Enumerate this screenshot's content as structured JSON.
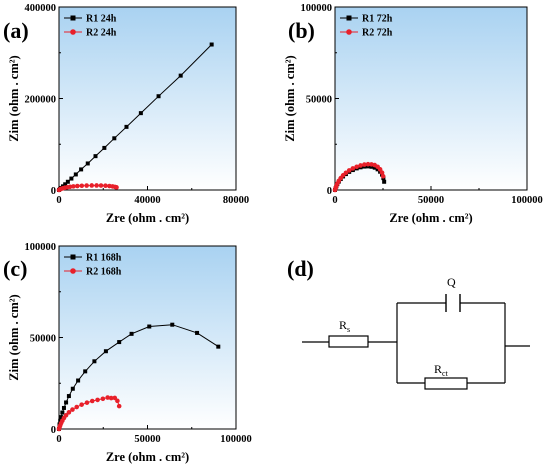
{
  "chart_data": [
    {
      "type": "scatter",
      "panel_label": "(a)",
      "xlabel": "Zre (ohm . cm²)",
      "ylabel": "Zim (ohm . cm²)",
      "xlim": [
        0,
        80000
      ],
      "ylim": [
        0,
        400000
      ],
      "xticks": [
        0,
        40000,
        80000
      ],
      "yticks": [
        0,
        200000,
        400000
      ],
      "legend": "top-left",
      "grid": false,
      "series": [
        {
          "name": "R1 24h",
          "color": "#000000",
          "marker": "square",
          "x": [
            0,
            400,
            1000,
            1800,
            2800,
            4000,
            5600,
            7600,
            10000,
            13000,
            16500,
            20500,
            25000,
            30500,
            37000,
            45000,
            55000,
            69000
          ],
          "y": [
            0,
            2000,
            4500,
            8000,
            12500,
            18000,
            25000,
            34000,
            45000,
            58000,
            74000,
            92000,
            113000,
            138000,
            168000,
            205000,
            250000,
            318000
          ]
        },
        {
          "name": "R2 24h",
          "color": "#e8202a",
          "marker": "circle",
          "x": [
            0,
            300,
            700,
            1200,
            1900,
            2700,
            3700,
            5000,
            6500,
            8300,
            10300,
            12500,
            14800,
            17000,
            19000,
            21000,
            22800,
            24200,
            25300,
            26000
          ],
          "y": [
            0,
            1000,
            2000,
            3000,
            4000,
            5000,
            6000,
            7000,
            7900,
            8700,
            9300,
            9700,
            9900,
            9950,
            9800,
            9400,
            8700,
            7800,
            6800,
            5800
          ]
        }
      ]
    },
    {
      "type": "scatter",
      "panel_label": "(b)",
      "xlabel": "Zre (ohm . cm²)",
      "ylabel": "Zim (ohm . cm²)",
      "xlim": [
        0,
        100000
      ],
      "ylim": [
        0,
        100000
      ],
      "xticks": [
        0,
        50000,
        100000
      ],
      "yticks": [
        0,
        50000,
        100000
      ],
      "legend": "top-left",
      "grid": false,
      "series": [
        {
          "name": "R1 72h",
          "color": "#000000",
          "marker": "square",
          "x": [
            0,
            300,
            700,
            1200,
            2000,
            3000,
            4200,
            5700,
            7400,
            9300,
            11300,
            13300,
            15300,
            17200,
            19000,
            20700,
            22200,
            23500,
            24500,
            25200,
            25600
          ],
          "y": [
            0,
            900,
            2000,
            3200,
            4600,
            6000,
            7400,
            8700,
            9900,
            10900,
            11800,
            12400,
            12800,
            12900,
            12700,
            12200,
            11300,
            10000,
            8400,
            6500,
            4500
          ]
        },
        {
          "name": "R2 72h",
          "color": "#e8202a",
          "marker": "circle",
          "x": [
            0,
            300,
            700,
            1200,
            2000,
            3000,
            4200,
            5700,
            7400,
            9300,
            11300,
            13300,
            15300,
            17200,
            19000,
            20700,
            22200,
            23500,
            24500,
            25100
          ],
          "y": [
            0,
            1000,
            2200,
            3500,
            5000,
            6500,
            8000,
            9400,
            10700,
            11800,
            12700,
            13400,
            13900,
            14100,
            14000,
            13600,
            12700,
            11300,
            9500,
            7500
          ]
        }
      ]
    },
    {
      "type": "scatter",
      "panel_label": "(c)",
      "xlabel": "Zre (ohm . cm²)",
      "ylabel": "Zim (ohm . cm²)",
      "xlim": [
        0,
        100000
      ],
      "ylim": [
        0,
        100000
      ],
      "xticks": [
        0,
        50000,
        100000
      ],
      "yticks": [
        0,
        50000,
        100000
      ],
      "legend": "top-left",
      "grid": false,
      "series": [
        {
          "name": "R1 168h",
          "color": "#000000",
          "marker": "square",
          "x": [
            0,
            300,
            700,
            1200,
            1900,
            2800,
            4000,
            5600,
            7800,
            10800,
            14800,
            20000,
            26500,
            34000,
            41000,
            51000,
            64000,
            78000,
            90000
          ],
          "y": [
            0,
            2500,
            4500,
            6500,
            9000,
            11500,
            14500,
            18000,
            22000,
            26500,
            31500,
            37000,
            42500,
            47500,
            52000,
            56000,
            57000,
            52500,
            45000
          ]
        },
        {
          "name": "R2 168h",
          "color": "#e8202a",
          "marker": "circle",
          "x": [
            0,
            300,
            700,
            1200,
            1900,
            2800,
            4000,
            5600,
            7600,
            10000,
            12800,
            15800,
            18800,
            21800,
            24800,
            27500,
            29500,
            31500,
            33000,
            34000
          ],
          "y": [
            0,
            1000,
            2000,
            3200,
            4500,
            6000,
            7500,
            9100,
            10600,
            12000,
            13300,
            14400,
            15300,
            15900,
            16500,
            17200,
            16900,
            17000,
            15400,
            12500
          ]
        }
      ]
    }
  ],
  "circuit": {
    "panel_label": "(d)",
    "rs_label": "R",
    "rs_sub": "s",
    "q_label": "Q",
    "rct_label": "R",
    "rct_sub": "ct"
  }
}
